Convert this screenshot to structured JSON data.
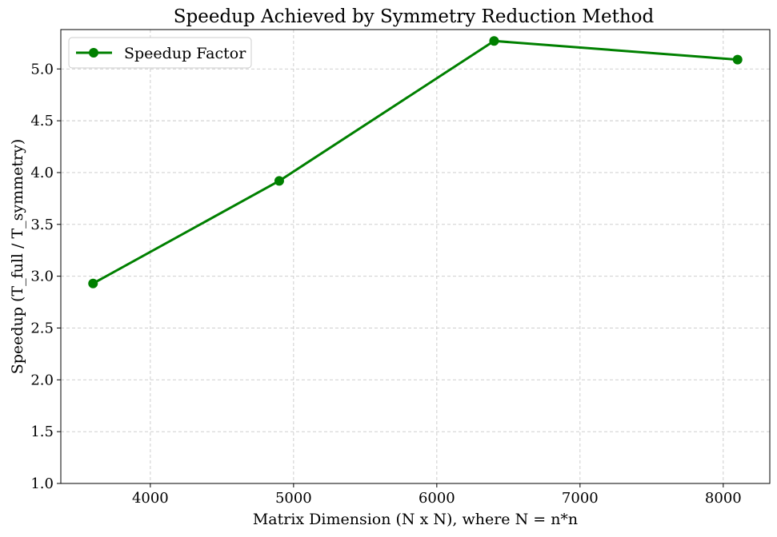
{
  "chart_data": {
    "type": "line",
    "title": "Speedup Achieved by Symmetry Reduction Method",
    "xlabel": "Matrix Dimension (N x N), where N = n*n",
    "ylabel": "Speedup (T_full / T_symmetry)",
    "x": [
      3600,
      4900,
      6400,
      8100
    ],
    "series": [
      {
        "name": "Speedup Factor",
        "values": [
          2.93,
          3.92,
          5.27,
          5.09
        ],
        "color": "#008000",
        "marker": "circle"
      }
    ],
    "xlim": [
      3375,
      8325
    ],
    "ylim": [
      1.0,
      5.38
    ],
    "xticks": [
      4000,
      5000,
      6000,
      7000,
      8000
    ],
    "xtick_labels": [
      "4000",
      "5000",
      "6000",
      "7000",
      "8000"
    ],
    "yticks": [
      1.0,
      1.5,
      2.0,
      2.5,
      3.0,
      3.5,
      4.0,
      4.5,
      5.0
    ],
    "ytick_labels": [
      "1.0",
      "1.5",
      "2.0",
      "2.5",
      "3.0",
      "3.5",
      "4.0",
      "4.5",
      "5.0"
    ],
    "grid": true,
    "legend_position": "upper-left"
  }
}
